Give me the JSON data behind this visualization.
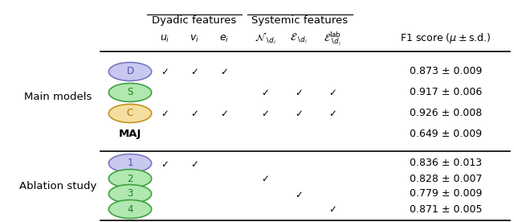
{
  "dyadic_header": "Dyadic features",
  "systemic_header": "Systemic features",
  "checks": [
    [
      1,
      1,
      1,
      0,
      0,
      0
    ],
    [
      0,
      0,
      0,
      1,
      1,
      1
    ],
    [
      1,
      1,
      1,
      1,
      1,
      1
    ],
    [
      0,
      0,
      0,
      0,
      0,
      0
    ],
    [
      1,
      1,
      0,
      0,
      0,
      0
    ],
    [
      0,
      0,
      0,
      1,
      0,
      0
    ],
    [
      0,
      0,
      0,
      0,
      1,
      0
    ],
    [
      0,
      0,
      0,
      0,
      0,
      1
    ]
  ],
  "f1_scores": [
    "0.873 ± 0.009",
    "0.917 ± 0.006",
    "0.926 ± 0.008",
    "0.649 ± 0.009",
    "0.836 ± 0.013",
    "0.828 ± 0.007",
    "0.779 ± 0.009",
    "0.871 ± 0.005"
  ],
  "row_labels": [
    "D",
    "S",
    "C",
    "MAJ",
    "1",
    "2",
    "3",
    "4"
  ],
  "row_is_circle": [
    true,
    true,
    true,
    false,
    true,
    true,
    true,
    true
  ],
  "circle_face_colors": [
    "#c8c8f0",
    "#b0e8b0",
    "#f5dfa0",
    "none",
    "#c8c8f0",
    "#b0e8b0",
    "#b0e8b0",
    "#b0e8b0"
  ],
  "circle_edge_colors": [
    "#7878c0",
    "#40a040",
    "#c89020",
    "none",
    "#7878c0",
    "#40a040",
    "#40a040",
    "#40a040"
  ],
  "label_text_colors": [
    "#5050a8",
    "#208020",
    "#a87010",
    "black",
    "#5050a8",
    "#208020",
    "#208020",
    "#208020"
  ],
  "section_main_label": "Main models",
  "section_abl_label": "Ablation study",
  "bg_color": "#ffffff"
}
